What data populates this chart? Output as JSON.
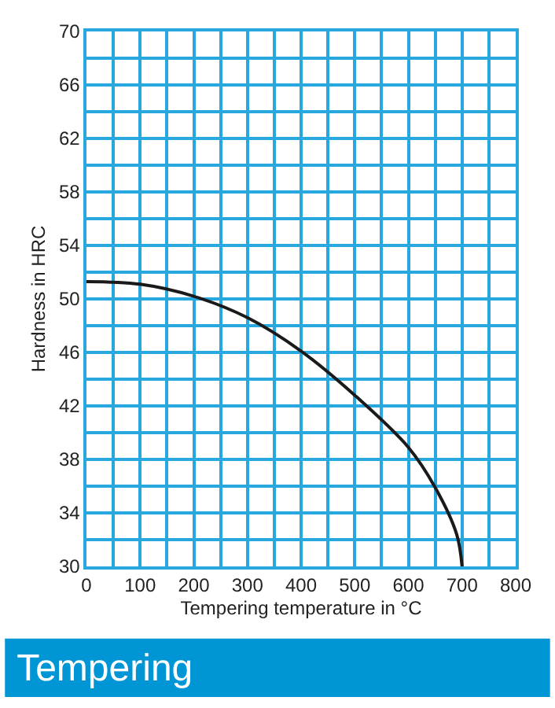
{
  "chart_data": {
    "type": "line",
    "title": "Tempering",
    "xlabel": "Tempering temperature in °C",
    "ylabel": "Hardness in HRC",
    "x": [
      0,
      100,
      200,
      300,
      400,
      500,
      600,
      650,
      690,
      700
    ],
    "series": [
      {
        "color": "#1a1a1a",
        "values": [
          51.3,
          51.1,
          50.2,
          48.6,
          46.1,
          42.8,
          38.9,
          35.9,
          32.4,
          30
        ]
      }
    ],
    "xlim": [
      0,
      800
    ],
    "ylim": [
      30,
      70
    ],
    "xticks": [
      0,
      {
        "value": 50,
        "label": null
      },
      100,
      {
        "value": 150,
        "label": null
      },
      200,
      {
        "value": 250,
        "label": null
      },
      300,
      {
        "value": 350,
        "label": null
      },
      400,
      {
        "value": 450,
        "label": null
      },
      500,
      {
        "value": 550,
        "label": null
      },
      600,
      {
        "value": 650,
        "label": null
      },
      700,
      {
        "value": 750,
        "label": null
      },
      800
    ],
    "yticks": [
      30,
      {
        "value": 32,
        "label": null
      },
      34,
      {
        "value": 36,
        "label": null
      },
      38,
      {
        "value": 40,
        "label": null
      },
      42,
      {
        "value": 44,
        "label": null
      },
      46,
      {
        "value": 48,
        "label": null
      },
      50,
      {
        "value": 52,
        "label": null
      },
      54,
      {
        "value": 56,
        "label": null
      },
      58,
      {
        "value": 60,
        "label": null
      },
      62,
      {
        "value": 64,
        "label": null
      },
      66,
      {
        "value": 68,
        "label": null
      },
      70
    ],
    "grid": true,
    "marker": "none",
    "line_style": "solid"
  }
}
